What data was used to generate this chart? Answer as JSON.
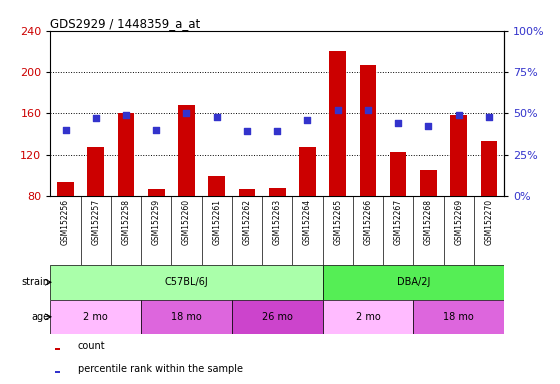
{
  "title": "GDS2929 / 1448359_a_at",
  "samples": [
    "GSM152256",
    "GSM152257",
    "GSM152258",
    "GSM152259",
    "GSM152260",
    "GSM152261",
    "GSM152262",
    "GSM152263",
    "GSM152264",
    "GSM152265",
    "GSM152266",
    "GSM152267",
    "GSM152268",
    "GSM152269",
    "GSM152270"
  ],
  "counts": [
    93,
    127,
    160,
    87,
    168,
    99,
    87,
    88,
    127,
    220,
    207,
    122,
    105,
    158,
    133
  ],
  "percentile_ranks": [
    40,
    47,
    49,
    40,
    50,
    48,
    39,
    39,
    46,
    52,
    52,
    44,
    42,
    49,
    48
  ],
  "ylim_left": [
    80,
    240
  ],
  "ylim_right": [
    0,
    100
  ],
  "yticks_left": [
    80,
    120,
    160,
    200,
    240
  ],
  "yticks_right": [
    0,
    25,
    50,
    75,
    100
  ],
  "bar_color": "#cc0000",
  "dot_color": "#3333cc",
  "strain_groups": [
    {
      "label": "C57BL/6J",
      "start": 0,
      "end": 9,
      "color": "#aaffaa"
    },
    {
      "label": "DBA/2J",
      "start": 9,
      "end": 15,
      "color": "#55ee55"
    }
  ],
  "age_groups": [
    {
      "label": "2 mo",
      "start": 0,
      "end": 3,
      "color": "#ffbbff"
    },
    {
      "label": "18 mo",
      "start": 3,
      "end": 6,
      "color": "#dd66dd"
    },
    {
      "label": "26 mo",
      "start": 6,
      "end": 9,
      "color": "#cc44cc"
    },
    {
      "label": "2 mo",
      "start": 9,
      "end": 12,
      "color": "#ffbbff"
    },
    {
      "label": "18 mo",
      "start": 12,
      "end": 15,
      "color": "#dd66dd"
    }
  ],
  "plot_bg": "#ffffff",
  "xlabel_bg": "#cccccc",
  "grid_color": "#000000",
  "label_color_left": "#cc0000",
  "label_color_right": "#3333cc",
  "legend_items": [
    {
      "color": "#cc0000",
      "label": "count"
    },
    {
      "color": "#3333cc",
      "label": "percentile rank within the sample"
    }
  ]
}
